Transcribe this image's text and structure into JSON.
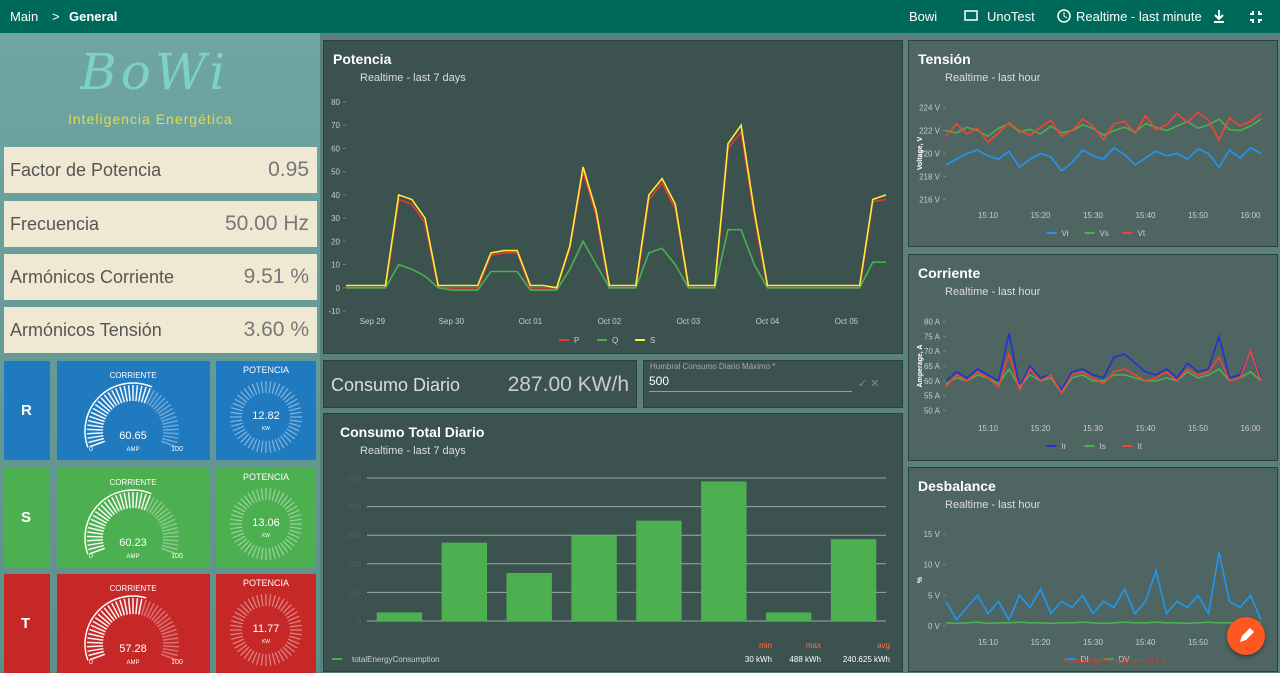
{
  "header": {
    "breadcrumb": [
      "Main",
      "General"
    ],
    "separator": ">",
    "dashboard_menu": "Bowi",
    "entity": "UnoTest",
    "timewindow": "Realtime - last minute"
  },
  "logo": {
    "text": "BoWi",
    "tagline": "Inteligencia Energética"
  },
  "metrics": [
    {
      "label": "Factor de Potencia",
      "value": "0.95"
    },
    {
      "label": "Frecuencia",
      "value": "50.00 Hz"
    },
    {
      "label": "Armónicos Corriente",
      "value": "9.51 %"
    },
    {
      "label": "Armónicos Tensión",
      "value": "3.60 %"
    }
  ],
  "phases": [
    {
      "name": "R",
      "color": "#1f7ac0",
      "current": {
        "title": "CORRIENTE",
        "value": 60.65,
        "unit": "AMP",
        "min": 0,
        "max": 100
      },
      "power": {
        "title": "POTENCIA",
        "value": 12.82,
        "unit": "KW"
      }
    },
    {
      "name": "S",
      "color": "#4caf50",
      "current": {
        "title": "CORRIENTE",
        "value": 60.23,
        "unit": "AMP",
        "min": 0,
        "max": 100
      },
      "power": {
        "title": "POTENCIA",
        "value": 13.06,
        "unit": "KW"
      }
    },
    {
      "name": "T",
      "color": "#c62828",
      "current": {
        "title": "CORRIENTE",
        "value": 57.28,
        "unit": "AMP",
        "min": 0,
        "max": 100
      },
      "power": {
        "title": "POTENCIA",
        "value": 11.77,
        "unit": "KW"
      }
    }
  ],
  "potencia": {
    "title": "Potencia",
    "subtitle": "Realtime - last 7 days",
    "chart": {
      "type": "line",
      "categories": [
        null,
        null,
        "Sep 29",
        null,
        null,
        null,
        null,
        null,
        "Sep 30",
        null,
        null,
        null,
        null,
        null,
        "Oct 01",
        null,
        null,
        null,
        null,
        null,
        "Oct 02",
        null,
        null,
        null,
        null,
        null,
        "Oct 03",
        null,
        null,
        null,
        null,
        null,
        "Oct 04",
        null,
        null,
        null,
        null,
        null,
        "Oct 05",
        null,
        null,
        null
      ],
      "ylim": [
        -10,
        80
      ],
      "yticks": [
        -10,
        0,
        10,
        20,
        30,
        40,
        50,
        60,
        70,
        80
      ],
      "series": [
        {
          "name": "P",
          "color": "#e53935",
          "values": [
            0,
            0,
            0,
            0,
            38,
            36,
            28,
            0,
            0,
            0,
            0,
            14,
            15,
            15,
            0,
            0,
            0,
            17,
            50,
            31,
            0,
            0,
            0,
            38,
            45,
            34,
            0,
            0,
            0,
            60,
            67,
            31,
            0,
            0,
            0,
            0,
            0,
            0,
            0,
            0,
            37,
            38
          ]
        },
        {
          "name": "Q",
          "color": "#4caf50",
          "values": [
            0,
            0,
            0,
            0,
            10,
            8,
            5,
            0,
            -1,
            -1,
            -1,
            7,
            7,
            7,
            -1,
            -1,
            -1,
            8,
            20,
            10,
            0,
            0,
            0,
            15,
            17,
            10,
            0,
            0,
            0,
            25,
            25,
            10,
            0,
            0,
            0,
            0,
            0,
            0,
            0,
            0,
            11,
            11
          ]
        },
        {
          "name": "S",
          "color": "#ffeb3b",
          "values": [
            1,
            1,
            1,
            1,
            40,
            38,
            30,
            1,
            1,
            1,
            1,
            15,
            16,
            16,
            1,
            1,
            0,
            18,
            52,
            33,
            1,
            1,
            1,
            40,
            47,
            36,
            1,
            1,
            1,
            62,
            70,
            33,
            1,
            1,
            1,
            1,
            1,
            1,
            1,
            1,
            38,
            40
          ]
        }
      ]
    }
  },
  "consumo_diario": {
    "label": "Consumo Diario",
    "value": "287.00 KW/h"
  },
  "umbral": {
    "label": "Humbral Consumo Diario Máximo *",
    "value": "500"
  },
  "consumo_total": {
    "title": "Consumo Total Diario",
    "subtitle": "Realtime - last 7 days",
    "chart": {
      "type": "bar",
      "categories": [
        null,
        null,
        null,
        null,
        null,
        null,
        null,
        null
      ],
      "ylim": [
        0,
        500
      ],
      "yticks": [
        0,
        100,
        200,
        300,
        400,
        500
      ],
      "series": [
        {
          "name": "totalEnergyConsumption",
          "color": "#4caf50",
          "values": [
            30,
            274,
            168,
            298,
            351,
            488,
            30,
            286
          ]
        }
      ]
    },
    "stats": [
      {
        "label": "min",
        "value": "30 kWh"
      },
      {
        "label": "max",
        "value": "488 kWh"
      },
      {
        "label": "avg",
        "value": "240.625 kWh"
      }
    ]
  },
  "tension": {
    "title": "Tensión",
    "subtitle": "Realtime - last hour",
    "chart": {
      "type": "line",
      "ylabel": "Voltage, V",
      "categories": [
        null,
        null,
        null,
        null,
        "15:10",
        null,
        null,
        null,
        null,
        "15:20",
        null,
        null,
        null,
        null,
        "15:30",
        null,
        null,
        null,
        null,
        "15:40",
        null,
        null,
        null,
        null,
        "15:50",
        null,
        null,
        null,
        null,
        "16:00",
        null
      ],
      "ylim": [
        215.5,
        224.5
      ],
      "yticks": [
        {
          "value": 216,
          "label": "216 V"
        },
        {
          "value": 218,
          "label": "218 V"
        },
        {
          "value": 220,
          "label": "220 V"
        },
        {
          "value": 222,
          "label": "222 V"
        },
        {
          "value": 224,
          "label": "224 V"
        }
      ],
      "series": [
        {
          "name": "Vr",
          "color": "#2196f3",
          "values": [
            219,
            219.5,
            220,
            220.3,
            219.8,
            219.5,
            220.2,
            218.8,
            219.5,
            220,
            219.7,
            218.5,
            219.2,
            220.3,
            219.8,
            219.5,
            220.5,
            219.9,
            219,
            219.6,
            220.2,
            219.8,
            220,
            219.5,
            220.4,
            220,
            218.8,
            220.3,
            219.6,
            220.5,
            220
          ]
        },
        {
          "name": "Vs",
          "color": "#4caf50",
          "values": [
            222,
            221.8,
            222.3,
            222,
            221.5,
            222.2,
            222.6,
            221.9,
            222.1,
            221.7,
            222.4,
            221.8,
            222,
            222.5,
            222.2,
            221.6,
            222,
            222.3,
            221.9,
            222.6,
            222.3,
            222,
            222.4,
            222.8,
            222.2,
            222.5,
            223,
            222.1,
            222,
            222.4,
            223
          ]
        },
        {
          "name": "Vt",
          "color": "#f44336",
          "values": [
            221.5,
            222.6,
            221.7,
            222.2,
            221,
            221.8,
            222.7,
            222,
            221.6,
            222.3,
            222.9,
            221.5,
            222,
            223,
            222.4,
            221.2,
            222.6,
            222.8,
            221.8,
            223.3,
            222.1,
            222.5,
            223.5,
            222.7,
            223.6,
            222.9,
            221.2,
            223.1,
            222.4,
            222.8,
            223.5
          ]
        }
      ]
    }
  },
  "corriente": {
    "title": "Corriente",
    "subtitle": "Realtime - last hour",
    "chart": {
      "type": "line",
      "ylabel": "Amperage, A",
      "categories": [
        null,
        null,
        null,
        null,
        "15:10",
        null,
        null,
        null,
        null,
        "15:20",
        null,
        null,
        null,
        null,
        "15:30",
        null,
        null,
        null,
        null,
        "15:40",
        null,
        null,
        null,
        null,
        "15:50",
        null,
        null,
        null,
        null,
        "16:00",
        null
      ],
      "ylim": [
        47.5,
        82.5
      ],
      "yticks": [
        {
          "value": 50,
          "label": "50 A"
        },
        {
          "value": 55,
          "label": "55 A"
        },
        {
          "value": 60,
          "label": "60 A"
        },
        {
          "value": 65,
          "label": "65 A"
        },
        {
          "value": 70,
          "label": "70 A"
        },
        {
          "value": 75,
          "label": "75 A"
        },
        {
          "value": 80,
          "label": "80 A"
        }
      ],
      "series": [
        {
          "name": "Ir",
          "color": "#2230d8",
          "values": [
            60,
            63,
            61,
            64,
            62,
            60,
            76,
            58,
            65,
            61,
            62,
            57,
            63,
            64,
            62,
            61,
            68,
            69,
            66,
            63,
            62,
            64,
            61,
            66,
            63,
            64,
            75,
            61,
            62,
            70,
            61
          ]
        },
        {
          "name": "Is",
          "color": "#4caf50",
          "values": [
            59,
            61,
            60,
            62,
            61,
            59,
            64,
            58,
            62,
            60,
            61,
            56,
            61,
            62,
            60,
            60,
            62,
            62,
            61,
            60,
            60,
            61,
            60,
            63,
            61,
            62,
            64,
            60,
            61,
            63,
            60
          ]
        },
        {
          "name": "It",
          "color": "#f44336",
          "values": [
            58,
            62,
            60,
            63,
            61,
            58,
            69,
            57,
            64,
            60,
            62,
            56,
            62,
            63,
            61,
            59,
            63,
            64,
            62,
            60,
            61,
            63,
            60,
            64,
            62,
            63,
            68,
            60,
            61,
            70,
            60
          ]
        }
      ]
    }
  },
  "desbalance": {
    "title": "Desbalance",
    "subtitle": "Realtime - last hour",
    "chart": {
      "type": "line",
      "ylabel": "%",
      "categories": [
        null,
        null,
        null,
        null,
        "15:10",
        null,
        null,
        null,
        null,
        "15:20",
        null,
        null,
        null,
        null,
        "15:30",
        null,
        null,
        null,
        null,
        "15:40",
        null,
        null,
        null,
        null,
        "15:50",
        null,
        null,
        null,
        null,
        "16:00",
        null
      ],
      "ylim": [
        -1,
        16
      ],
      "yticks": [
        {
          "value": 0,
          "label": "0 V"
        },
        {
          "value": 5,
          "label": "5 V"
        },
        {
          "value": 10,
          "label": "10 V"
        },
        {
          "value": 15,
          "label": "15 V"
        }
      ],
      "series": [
        {
          "name": "DI",
          "color": "#2196f3",
          "values": [
            4,
            1,
            3,
            5,
            2,
            4,
            1,
            5,
            3,
            6,
            2,
            4,
            3,
            5,
            2,
            4,
            3,
            6,
            2,
            4,
            9,
            2,
            4,
            3,
            5,
            2,
            12,
            4,
            3,
            5,
            1
          ]
        },
        {
          "name": "DV",
          "color": "#4caf50",
          "values": [
            0.5,
            0.4,
            0.5,
            0.6,
            0.4,
            0.5,
            0.5,
            0.6,
            0.5,
            0.5,
            0.4,
            0.5,
            0.5,
            0.6,
            0.5,
            0.4,
            0.5,
            0.6,
            0.5,
            0.5,
            0.6,
            0.5,
            0.5,
            0.4,
            0.5,
            0.6,
            0.5,
            0.5,
            0.4,
            0.5,
            0.6
          ]
        }
      ]
    }
  },
  "footer": "Powered by ThingsBoard v.3.1.1"
}
